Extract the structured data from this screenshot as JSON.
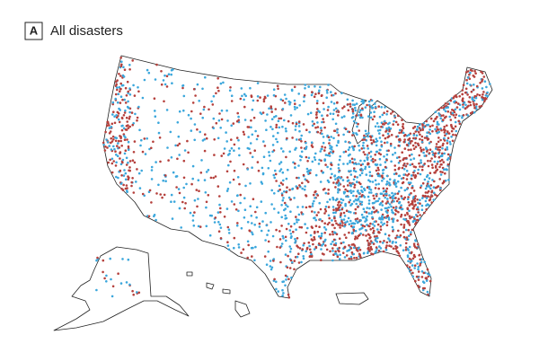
{
  "panel": {
    "letter": "A",
    "title": "All disasters"
  }
}
